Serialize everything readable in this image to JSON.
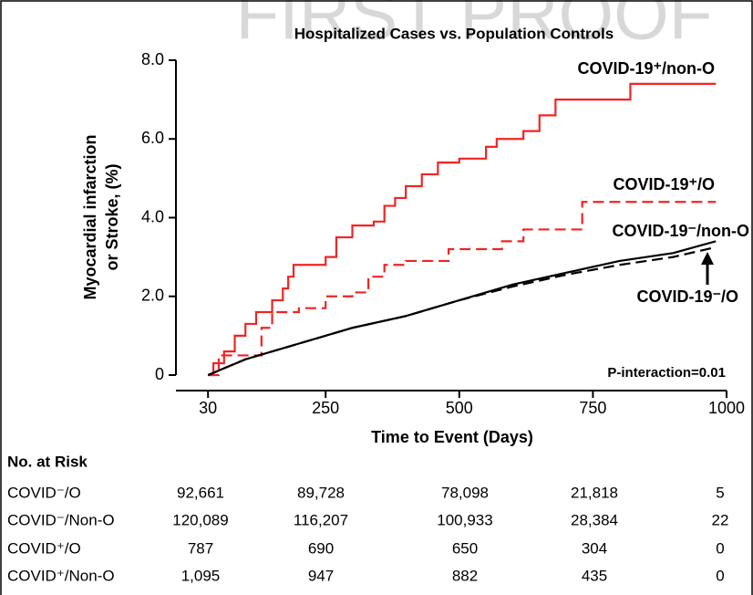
{
  "watermark": "FIRST PROOF",
  "chart_data": {
    "type": "line",
    "title": "Hospitalized Cases vs. Population Controls",
    "x_label": "Time to Event (Days)",
    "y_label": [
      "Myocardial infarction",
      "or Stroke, (%)"
    ],
    "annotation": "P-interaction=0.01",
    "xlim": [
      -30,
      1000
    ],
    "xticks": [
      30,
      250,
      500,
      750,
      1000
    ],
    "ylim": [
      0,
      8
    ],
    "yticks": [
      0,
      {
        "value": 2,
        "label": "2.0"
      },
      {
        "value": 4,
        "label": "4.0"
      },
      {
        "value": 6,
        "label": "6.0"
      },
      {
        "value": 8,
        "label": "8.0"
      }
    ],
    "series": [
      {
        "name": "COVID-19⁺/non-O",
        "color": "#f02424",
        "dashed": false,
        "step": true,
        "x": [
          30,
          40,
          60,
          80,
          100,
          120,
          150,
          170,
          180,
          190,
          240,
          250,
          270,
          300,
          340,
          360,
          380,
          400,
          430,
          460,
          500,
          550,
          570,
          620,
          650,
          680,
          820,
          980
        ],
        "values": [
          0,
          0.3,
          0.6,
          1.0,
          1.3,
          1.6,
          1.9,
          2.2,
          2.5,
          2.8,
          2.8,
          3.0,
          3.5,
          3.8,
          3.9,
          4.3,
          4.5,
          4.8,
          5.1,
          5.4,
          5.5,
          5.8,
          6.0,
          6.2,
          6.6,
          7.0,
          7.4,
          7.4
        ]
      },
      {
        "name": "COVID-19⁺/O",
        "color": "#f02424",
        "dashed": true,
        "step": true,
        "x": [
          30,
          50,
          100,
          130,
          150,
          200,
          250,
          300,
          330,
          360,
          400,
          480,
          580,
          620,
          720,
          730,
          980
        ],
        "values": [
          0,
          0.5,
          0.5,
          1.2,
          1.6,
          1.7,
          2.0,
          2.1,
          2.5,
          2.8,
          2.9,
          3.2,
          3.4,
          3.7,
          3.7,
          4.4,
          4.4
        ]
      },
      {
        "name": "COVID-19⁻/non-O",
        "color": "#000000",
        "dashed": false,
        "step": false,
        "x": [
          30,
          100,
          200,
          300,
          400,
          500,
          600,
          700,
          800,
          900,
          980
        ],
        "values": [
          0,
          0.4,
          0.8,
          1.2,
          1.5,
          1.9,
          2.3,
          2.6,
          2.9,
          3.1,
          3.4
        ]
      },
      {
        "name": "COVID-19⁻/O",
        "color": "#000000",
        "dashed": true,
        "step": false,
        "x": [
          30,
          100,
          200,
          300,
          400,
          500,
          600,
          700,
          800,
          900,
          980
        ],
        "values": [
          0,
          0.4,
          0.8,
          1.2,
          1.5,
          1.9,
          2.25,
          2.55,
          2.8,
          3.0,
          3.25
        ]
      }
    ]
  },
  "risk_table": {
    "title": "No. at Risk",
    "rows": [
      {
        "label": "COVID⁻/O",
        "values": [
          "92,661",
          "89,728",
          "78,098",
          "21,818",
          "5"
        ]
      },
      {
        "label": "COVID⁻/Non-O",
        "values": [
          "120,089",
          "116,207",
          "100,933",
          "28,384",
          "22"
        ]
      },
      {
        "label": "COVID⁺/O",
        "values": [
          "787",
          "690",
          "650",
          "304",
          "0"
        ]
      },
      {
        "label": "COVID⁺/Non-O",
        "values": [
          "1,095",
          "947",
          "882",
          "435",
          "0"
        ]
      }
    ]
  }
}
